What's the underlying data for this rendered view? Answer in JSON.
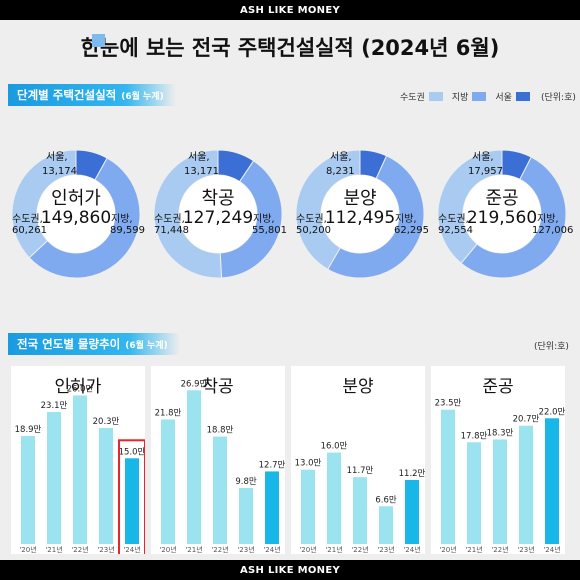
{
  "header": {
    "brand": "ASH LIKE MONEY"
  },
  "footer": {
    "brand": "ASH LIKE MONEY"
  },
  "title": "한눈에 보는 전국 주택건설실적 (2024년 6월)",
  "section1": {
    "title": "단계별 주택건설실적",
    "sub": "(6월 누계)"
  },
  "section2": {
    "title": "전국 연도별 물량추이",
    "sub": "(6월 누계)"
  },
  "legend": [
    {
      "label": "수도권",
      "color": "#a9cbf1"
    },
    {
      "label": "지방",
      "color": "#7faaf0"
    },
    {
      "label": "서울",
      "color": "#3b6fd6"
    }
  ],
  "unit1": "(단위:호)",
  "unit2": "(단위:호)",
  "colors": {
    "accent": "#1a9ae0",
    "bar": "#9be4ef",
    "bar_current": "#18b7e8",
    "highlight": "#e8262b"
  },
  "chart_data": [
    {
      "type": "pie",
      "title": "단계별 주택건설실적",
      "charts": [
        {
          "name": "인허가",
          "total": "149,860",
          "slices": [
            {
              "label": "서울,",
              "value": 13174,
              "display": "13,174"
            },
            {
              "label": "수도권,",
              "value": 60261,
              "display": "60,261"
            },
            {
              "label": "지방,",
              "value": 89599,
              "display": "89,599"
            }
          ]
        },
        {
          "name": "착공",
          "total": "127,249",
          "slices": [
            {
              "label": "서울,",
              "value": 13171,
              "display": "13,171"
            },
            {
              "label": "수도권,",
              "value": 71448,
              "display": "71,448"
            },
            {
              "label": "지방,",
              "value": 55801,
              "display": "55,801"
            }
          ]
        },
        {
          "name": "분양",
          "total": "112,495",
          "slices": [
            {
              "label": "서울,",
              "value": 8231,
              "display": "8,231"
            },
            {
              "label": "수도권,",
              "value": 50200,
              "display": "50,200"
            },
            {
              "label": "지방,",
              "value": 62295,
              "display": "62,295"
            }
          ]
        },
        {
          "name": "준공",
          "total": "219,560",
          "slices": [
            {
              "label": "서울,",
              "value": 17957,
              "display": "17,957"
            },
            {
              "label": "수도권,",
              "value": 92554,
              "display": "92,554"
            },
            {
              "label": "지방,",
              "value": 127006,
              "display": "127,006"
            }
          ]
        }
      ]
    },
    {
      "type": "bar",
      "title": "전국 연도별 물량추이",
      "categories": [
        "'20년",
        "'21년",
        "'22년",
        "'23년",
        "'24년"
      ],
      "ylim": [
        0,
        28
      ],
      "series": [
        {
          "name": "인허가",
          "values": [
            18.9,
            23.1,
            26.0,
            20.3,
            15.0
          ],
          "labels": [
            "18.9만",
            "23.1만",
            "26.0만",
            "20.3만",
            "15.0만"
          ],
          "highlight_index": 4
        },
        {
          "name": "착공",
          "values": [
            21.8,
            26.9,
            18.8,
            9.8,
            12.7
          ],
          "labels": [
            "21.8만",
            "26.9만",
            "18.8만",
            "9.8만",
            "12.7만"
          ]
        },
        {
          "name": "분양",
          "values": [
            13.0,
            16.0,
            11.7,
            6.6,
            11.2
          ],
          "labels": [
            "13.0만",
            "16.0만",
            "11.7만",
            "6.6만",
            "11.2만"
          ]
        },
        {
          "name": "준공",
          "values": [
            23.5,
            17.8,
            18.3,
            20.7,
            22.0
          ],
          "labels": [
            "23.5만",
            "17.8만",
            "18.3만",
            "20.7만",
            "22.0만"
          ]
        }
      ]
    }
  ]
}
